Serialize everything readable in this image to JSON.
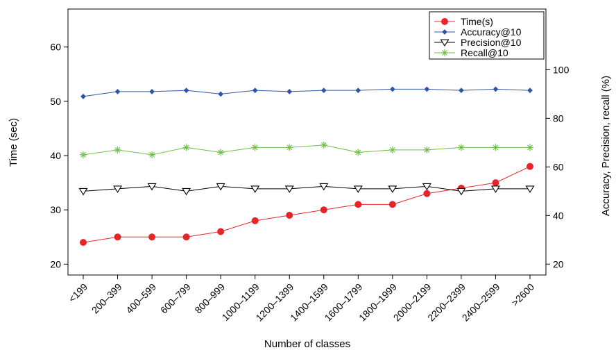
{
  "chart_data": {
    "type": "line",
    "xlabel": "Number of classes",
    "ylabel_left": "Time (sec)",
    "ylabel_right": "Accuracy, Precision, recall (%)",
    "categories": [
      "<199",
      "200–399",
      "400–599",
      "600–799",
      "800–999",
      "1000–1199",
      "1200–1399",
      "1400–1599",
      "1600–1799",
      "1800–1999",
      "2000–2199",
      "2200–2399",
      "2400–2599",
      ">2600"
    ],
    "ylim_left": [
      18,
      67
    ],
    "ylim_right": [
      15.5,
      125
    ],
    "yticks_left": [
      20,
      30,
      40,
      50,
      60
    ],
    "yticks_right": [
      20,
      40,
      60,
      80,
      100
    ],
    "legend_position": "top-right",
    "series": [
      {
        "name": "Time(s)",
        "axis": "left",
        "color": "#e8242b",
        "marker": "circle",
        "values": [
          24,
          25,
          25,
          25,
          26,
          28,
          29,
          30,
          31,
          31,
          33,
          34,
          35,
          38
        ]
      },
      {
        "name": "Accuracy@10",
        "axis": "right",
        "color": "#2f56a6",
        "marker": "diamond",
        "values": [
          89,
          91,
          91,
          91.5,
          90,
          91.5,
          91,
          91.5,
          91.5,
          92,
          92,
          91.5,
          92,
          91.5
        ]
      },
      {
        "name": "Precision@10",
        "axis": "right",
        "color": "#000000",
        "marker": "triangle-down",
        "values": [
          50,
          51,
          52,
          50,
          52,
          51,
          51,
          52,
          51,
          51,
          52,
          50,
          51,
          51
        ]
      },
      {
        "name": "Recall@10",
        "axis": "right",
        "color": "#6ebf47",
        "marker": "asterisk",
        "values": [
          65,
          67,
          65,
          68,
          66,
          68,
          68,
          69,
          66,
          67,
          67,
          68,
          68,
          68
        ]
      }
    ]
  }
}
